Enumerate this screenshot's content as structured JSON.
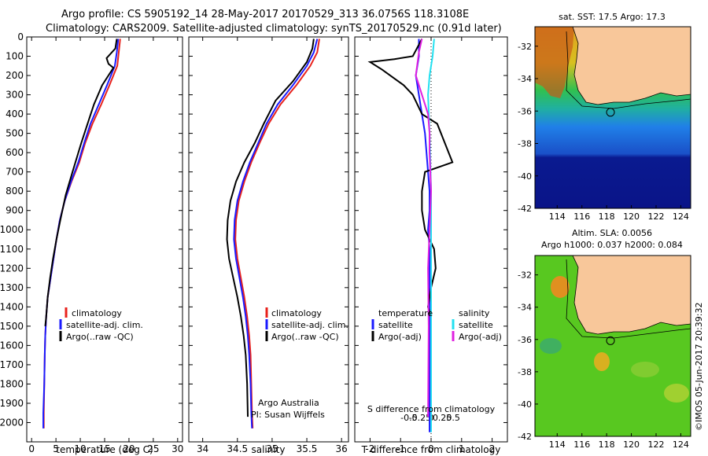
{
  "header": {
    "line1": "Argo profile: CS 5905192_14 28-May-2017 20170529_313 36.0756S 118.3108E",
    "line2": "Climatology: CARS2009. Satellite-adjusted climatology: synTS_20170529.nc (0.91d later)"
  },
  "colors": {
    "climatology": "#e8221c",
    "satellite": "#1a1aff",
    "argo": "#000000",
    "sat_salinity": "#22e0f0",
    "argo_salinity": "#e020e0",
    "land": "#f8c79a"
  },
  "chart_data": [
    {
      "type": "line",
      "xlabel": "temperature (deg C)",
      "ylabel": "",
      "xlim": [
        -1,
        31
      ],
      "ylim": [
        2100,
        0
      ],
      "xticks": [
        "0",
        "5",
        "10",
        "15",
        "20",
        "25",
        "30"
      ],
      "yticks": [
        "0",
        "100",
        "200",
        "300",
        "400",
        "500",
        "600",
        "700",
        "800",
        "900",
        "1000",
        "1100",
        "1200",
        "1300",
        "1400",
        "1500",
        "1600",
        "1700",
        "1800",
        "1900",
        "2000"
      ],
      "legend": [
        "climatology",
        "satellite-adj. clim.",
        "Argo(..raw -QC)"
      ],
      "series": [
        {
          "name": "climatology",
          "color": "#e8221c",
          "x": [
            18.2,
            17.9,
            17.6,
            16.0,
            14.3,
            12.5,
            11.0,
            9.8,
            8.2,
            6.8,
            5.8,
            5.1,
            4.5,
            3.9,
            3.3,
            3.0,
            2.8,
            2.7,
            2.6,
            2.5,
            2.5
          ],
          "y": [
            10,
            80,
            150,
            250,
            350,
            450,
            550,
            650,
            750,
            850,
            950,
            1050,
            1150,
            1250,
            1350,
            1450,
            1550,
            1650,
            1800,
            1950,
            2030
          ]
        },
        {
          "name": "satellite-adj. clim.",
          "color": "#1a1aff",
          "x": [
            17.8,
            17.5,
            17.1,
            15.5,
            13.8,
            12.1,
            10.8,
            9.6,
            8.1,
            6.8,
            5.8,
            5.1,
            4.5,
            3.9,
            3.3,
            3.0,
            2.8,
            2.7,
            2.6,
            2.4,
            2.4
          ],
          "y": [
            10,
            80,
            150,
            250,
            350,
            450,
            550,
            650,
            750,
            850,
            950,
            1050,
            1150,
            1250,
            1350,
            1450,
            1550,
            1650,
            1800,
            1950,
            2030
          ]
        },
        {
          "name": "Argo(..raw -QC)",
          "color": "#000000",
          "x": [
            17.5,
            17.2,
            15.4,
            15.8,
            16.8,
            14.5,
            12.8,
            11.5,
            10.2,
            8.4,
            7.0,
            5.9,
            5.1,
            4.4,
            3.8,
            3.3,
            3.0,
            2.8
          ],
          "y": [
            10,
            60,
            110,
            140,
            160,
            250,
            350,
            450,
            550,
            700,
            820,
            950,
            1050,
            1150,
            1250,
            1350,
            1450,
            1500
          ]
        }
      ]
    },
    {
      "type": "line",
      "xlabel": "salinity",
      "xlim": [
        33.8,
        36.1
      ],
      "ylim": [
        2100,
        0
      ],
      "xticks": [
        "34",
        "34.5",
        "35",
        "35.5",
        "36"
      ],
      "legend": [
        "climatology",
        "satellite-adj. clim.",
        "Argo(..raw -QC)"
      ],
      "annotations": [
        "Argo Australia",
        "PI: Susan Wijffels"
      ],
      "series": [
        {
          "name": "climatology",
          "color": "#e8221c",
          "x": [
            35.68,
            35.65,
            35.55,
            35.35,
            35.12,
            34.95,
            34.82,
            34.7,
            34.6,
            34.52,
            34.48,
            34.47,
            34.5,
            34.55,
            34.6,
            34.64,
            34.67,
            34.69,
            34.7,
            34.71,
            34.72
          ],
          "y": [
            10,
            80,
            150,
            250,
            350,
            450,
            550,
            650,
            750,
            850,
            950,
            1050,
            1150,
            1250,
            1350,
            1450,
            1550,
            1650,
            1800,
            1950,
            2030
          ]
        },
        {
          "name": "satellite-adj. clim.",
          "color": "#1a1aff",
          "x": [
            35.65,
            35.6,
            35.5,
            35.3,
            35.08,
            34.92,
            34.8,
            34.68,
            34.58,
            34.5,
            34.46,
            34.45,
            34.48,
            34.53,
            34.58,
            34.62,
            34.65,
            34.67,
            34.69,
            34.7,
            34.71
          ],
          "y": [
            10,
            80,
            150,
            250,
            350,
            450,
            550,
            650,
            750,
            850,
            950,
            1050,
            1150,
            1250,
            1350,
            1450,
            1550,
            1650,
            1800,
            1950,
            2030
          ]
        },
        {
          "name": "Argo(..raw -QC)",
          "color": "#000000",
          "x": [
            35.6,
            35.58,
            35.5,
            35.3,
            35.05,
            34.88,
            34.75,
            34.6,
            34.48,
            34.4,
            34.36,
            34.35,
            34.38,
            34.44,
            34.5,
            34.55,
            34.59,
            34.62,
            34.64,
            34.65
          ],
          "y": [
            10,
            60,
            130,
            230,
            330,
            450,
            550,
            650,
            750,
            850,
            950,
            1050,
            1150,
            1250,
            1350,
            1450,
            1550,
            1650,
            1800,
            1970
          ]
        }
      ]
    },
    {
      "type": "line",
      "xlabel": "T difference from climatology",
      "top_label": "S difference from climatology",
      "xlim": [
        -2.5,
        2.5
      ],
      "ylim": [
        2100,
        0
      ],
      "xticks": [
        "-2",
        "-1",
        "0",
        "1",
        "2"
      ],
      "top_ticks": [
        "-0.5",
        "-0.25",
        "0",
        "0.25",
        "0.5"
      ],
      "legend_left_title": "temperature",
      "legend_right_title": "salinity",
      "legend": [
        "satellite",
        "Argo(-adj)",
        "satellite",
        "Argo(-adj)"
      ],
      "series": [
        {
          "name": "satellite",
          "color": "#1a1aff",
          "x": [
            -0.4,
            -0.4,
            -0.5,
            -0.4,
            -0.3,
            -0.2,
            -0.15,
            -0.1,
            -0.05,
            -0.05,
            -0.1,
            -0.05,
            -0.05,
            -0.05,
            -0.05,
            -0.05,
            -0.05,
            -0.05,
            -0.05
          ],
          "y": [
            10,
            100,
            200,
            300,
            400,
            500,
            600,
            700,
            800,
            900,
            1000,
            1100,
            1200,
            1300,
            1500,
            1700,
            1900,
            2000,
            2050
          ]
        },
        {
          "name": "Argo(-adj)",
          "color": "#000000",
          "x": [
            -0.3,
            -0.6,
            -1.2,
            -2.0,
            -1.6,
            -0.9,
            -0.6,
            -0.3,
            0.2,
            0.7,
            -0.2,
            -0.3,
            -0.3,
            -0.2,
            0.1,
            0.15,
            0.0,
            -0.1,
            0.0,
            0.0
          ],
          "y": [
            10,
            100,
            115,
            130,
            170,
            250,
            300,
            400,
            450,
            650,
            700,
            800,
            900,
            1000,
            1100,
            1200,
            1300,
            1400,
            1450,
            1480
          ]
        },
        {
          "name": "satellite",
          "color": "#22e0f0",
          "x": [
            0.1,
            0.05,
            -0.05,
            -0.1,
            -0.05,
            0.0,
            0.0,
            0.0,
            0.0,
            0.0
          ],
          "y": [
            10,
            100,
            200,
            300,
            500,
            800,
            1100,
            1400,
            1700,
            2050
          ]
        },
        {
          "name": "Argo(-adj)",
          "color": "#e020e0",
          "x": [
            -0.3,
            -0.4,
            -0.5,
            -0.3,
            -0.1,
            -0.05,
            -0.05,
            0.0,
            -0.05,
            -0.1,
            -0.08,
            -0.1
          ],
          "y": [
            10,
            80,
            200,
            300,
            400,
            500,
            600,
            800,
            1000,
            1200,
            1500,
            1970
          ]
        }
      ]
    }
  ],
  "maps": {
    "sst_title": "sat. SST: 17.5 Argo: 17.3",
    "sla_title1": "Altim. SLA: 0.0056",
    "sla_title2": "Argo h1000: 0.037 h2000: 0.084",
    "lat_ticks": [
      "-32",
      "-34",
      "-36",
      "-38",
      "-40",
      "-42"
    ],
    "lon_ticks": [
      "114",
      "116",
      "118",
      "120",
      "122",
      "124"
    ],
    "argo_position": {
      "lon": 118.3108,
      "lat": -36.0756
    },
    "sst_bands": [
      "warm coast",
      "green",
      "blue",
      "dark blue"
    ]
  },
  "credit": "©IMOS 05-Jun-2017 20:39:32"
}
